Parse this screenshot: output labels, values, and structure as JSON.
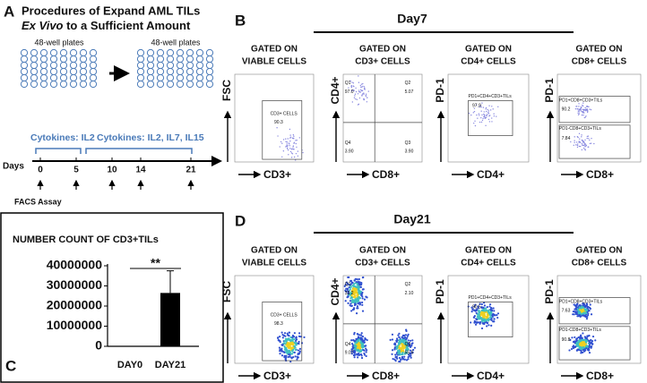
{
  "panel_a": {
    "label": "A",
    "title_line_1": "Procedures of Expand AML TILs",
    "title_italic": "Ex Vivo",
    "title_rest": " to a Sufficient Amount",
    "plate_labels": [
      "48-well plates",
      "48-well plates"
    ],
    "cytokines": [
      "Cytokines: IL2",
      "Cytokines: IL2, IL7, IL15"
    ],
    "days_label": "Days",
    "days": [
      0,
      5,
      10,
      14,
      21
    ],
    "facs": "FACS Assay"
  },
  "panel_b": {
    "label": "B",
    "day": "Day7",
    "plots": [
      {
        "header": [
          "GATED ON",
          "VIABLE CELLS"
        ],
        "y_axis": "FSC",
        "x_axis": "CD3+",
        "texts": [
          "CD3+ CELLS",
          "90.3"
        ]
      },
      {
        "header": [
          "GATED ON",
          "CD3+ CELLS"
        ],
        "y_axis": "CD4+",
        "x_axis": "CD8+",
        "texts": [
          "Q1",
          "97.0",
          "Q2",
          "5.07",
          "Q4",
          "3.90",
          "Q3",
          "3.90"
        ]
      },
      {
        "header": [
          "GATED ON",
          "CD4+ CELLS"
        ],
        "y_axis": "PD-1",
        "x_axis": "CD4+",
        "texts": [
          "PD1+CD4+CD3+TILs",
          "97.9"
        ]
      },
      {
        "header": [
          "GATED ON",
          "CD8+ CELLS"
        ],
        "y_axis": "PD-1",
        "x_axis": "CD8+",
        "texts": [
          "PD1+CD8+CD3+TILs",
          "90.2",
          "PD1-CD8+CD3+TILs",
          "7.84"
        ]
      }
    ]
  },
  "panel_d": {
    "label": "D",
    "day": "Day21",
    "plots": [
      {
        "header": [
          "GATED ON",
          "VIABLE CELLS"
        ],
        "y_axis": "FSC",
        "x_axis": "CD3+",
        "texts": [
          "CD3+ CELLS",
          "98.3"
        ]
      },
      {
        "header": [
          "GATED ON",
          "CD3+ CELLS"
        ],
        "y_axis": "CD4+",
        "x_axis": "CD8+",
        "texts": [
          "Q1",
          "33.2",
          "Q2",
          "2.10",
          "Q4",
          "9.07",
          "Q3",
          "55.6"
        ]
      },
      {
        "header": [
          "GATED ON",
          "CD4+ CELLS"
        ],
        "y_axis": "PD-1",
        "x_axis": "CD4+",
        "texts": [
          "PD1+CD4+CD3+TILs",
          "90.5"
        ]
      },
      {
        "header": [
          "GATED ON",
          "CD8+ CELLS"
        ],
        "y_axis": "PD-1",
        "x_axis": "CD8+",
        "texts": [
          "PD1+CD8+CD3+TILs",
          "7.63",
          "PD1-CD8+CD3+TILs",
          "90.8"
        ]
      }
    ]
  },
  "chart_data": {
    "type": "bar",
    "panel_label": "C",
    "title": "NUMBER COUNT OF CD3+TILs",
    "categories": [
      "DAY0",
      "DAY21"
    ],
    "values": [
      0,
      26500000
    ],
    "errors": [
      0,
      11000000
    ],
    "color": "#000000",
    "ylim": [
      0,
      40000000
    ],
    "yticks": [
      0,
      10000000,
      20000000,
      30000000,
      40000000
    ],
    "annotation": "**"
  }
}
